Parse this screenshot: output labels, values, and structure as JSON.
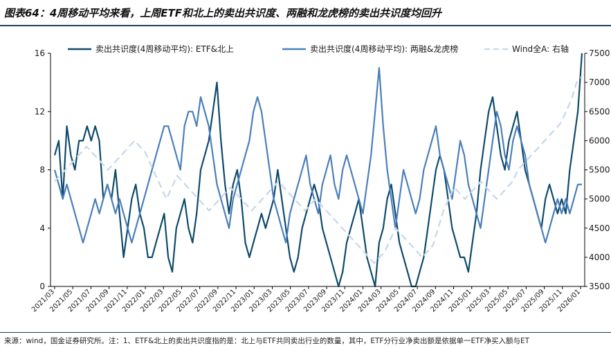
{
  "header": {
    "title": "图表64：4周移动平均来看，上周ETF和北上的卖出共识度、两融和龙虎榜的卖出共识度均回升"
  },
  "footer": {
    "note": "来源：wind，国金证券研究所。注：1、ETF&北上的卖出共识度指的是：北上与ETF共同卖出行业的数量，其中，ETF分行业净卖出额是依据单一ETF净买入额与ET"
  },
  "colors": {
    "series_etf": "#0d4a6b",
    "series_margin": "#4a7ebb",
    "series_wind": "#c9d9ea",
    "axis": "#000000"
  },
  "chart_data": {
    "type": "line",
    "title": "",
    "xlabel": "",
    "ylabel": "",
    "x_tick_labels": [
      "2021/03",
      "2021/05",
      "2021/07",
      "2021/09",
      "2021/11",
      "2022/01",
      "2022/03",
      "2022/05",
      "2022/07",
      "2022/09",
      "2022/11",
      "2023/01",
      "2023/03",
      "2023/05",
      "2023/07",
      "2023/09",
      "2023/11",
      "2024/01",
      "2024/03",
      "2024/05",
      "2024/07",
      "2024/09",
      "2024/11",
      "2025/01",
      "2025/03",
      "2025/05",
      "2025/07",
      "2025/09",
      "2025/11",
      "2026/01"
    ],
    "y_left_ticks": [
      "0",
      "4",
      "8",
      "12",
      "16"
    ],
    "y_right_ticks": [
      "3500",
      "4000",
      "4500",
      "5000",
      "5500",
      "6000",
      "6500",
      "7000",
      "7500"
    ],
    "ylim_left": [
      0,
      16
    ],
    "ylim_right": [
      3500,
      7500
    ],
    "legend_position": "top",
    "series": [
      {
        "name": "卖出共识度(4周移动平均): ETF&北上",
        "axis": "left",
        "values": [
          9,
          10,
          6,
          11,
          9,
          8,
          10,
          10,
          11,
          10,
          11,
          10,
          6,
          7,
          6,
          8,
          5,
          2,
          4,
          6,
          7,
          5,
          4,
          2,
          2,
          3,
          4,
          5,
          2,
          1,
          4,
          5,
          6,
          4,
          3,
          5,
          8,
          9,
          10,
          12,
          14,
          10,
          7,
          5,
          7,
          8,
          6,
          3,
          2,
          3,
          4,
          5,
          4,
          5,
          6,
          8,
          6,
          4,
          2,
          1,
          2,
          4,
          5,
          6,
          7,
          6,
          4,
          3,
          2,
          1,
          0,
          1,
          3,
          4,
          5,
          6,
          4,
          2,
          1,
          0,
          3,
          4,
          6,
          7,
          5,
          3,
          2,
          1,
          0,
          0,
          1,
          2,
          4,
          6,
          8,
          9,
          8,
          6,
          4,
          3,
          2,
          2,
          1,
          3,
          5,
          8,
          10,
          12,
          13,
          11,
          9,
          8,
          10,
          11,
          12,
          10,
          8,
          7,
          6,
          5,
          4,
          6,
          7,
          6,
          5,
          6,
          5,
          8,
          10,
          12,
          16
        ],
        "point_count": 131
      },
      {
        "name": "卖出共识度(4周移动平均): 两融&龙虎榜",
        "axis": "left",
        "values": [
          8,
          7,
          6,
          7,
          6,
          5,
          4,
          3,
          4,
          5,
          6,
          5,
          6,
          7,
          6,
          5,
          6,
          5,
          4,
          3,
          4,
          5,
          6,
          7,
          8,
          9,
          10,
          11,
          11,
          10,
          9,
          8,
          11,
          12,
          12,
          11,
          13,
          12,
          11,
          9,
          7,
          6,
          5,
          4,
          6,
          7,
          8,
          9,
          10,
          12,
          13,
          12,
          10,
          8,
          6,
          5,
          4,
          3,
          5,
          6,
          7,
          8,
          9,
          7,
          6,
          5,
          7,
          8,
          9,
          7,
          6,
          8,
          9,
          8,
          7,
          6,
          5,
          7,
          9,
          12,
          15,
          11,
          8,
          6,
          4,
          6,
          8,
          7,
          6,
          5,
          6,
          8,
          9,
          10,
          11,
          9,
          8,
          7,
          6,
          8,
          10,
          9,
          7,
          6,
          5,
          4,
          6,
          8,
          10,
          12,
          11,
          9,
          8,
          10,
          11,
          10,
          9,
          7,
          6,
          5,
          4,
          3,
          4,
          5,
          6,
          5,
          6,
          5,
          6,
          7,
          7
        ],
        "point_count": 131
      },
      {
        "name": "Wind全A: 右轴",
        "axis": "right",
        "values": [
          5300,
          5400,
          5500,
          5600,
          5700,
          5800,
          5900,
          5800,
          5700,
          5600,
          5500,
          5600,
          5700,
          5800,
          5900,
          6000,
          5900,
          5800,
          5600,
          5400,
          5200,
          5000,
          5200,
          5400,
          5300,
          5200,
          5100,
          5000,
          4900,
          4800,
          4900,
          5000,
          5100,
          5200,
          5100,
          5000,
          4900,
          4800,
          4900,
          5000,
          5100,
          5200,
          5300,
          5200,
          5100,
          5000,
          4900,
          4800,
          4900,
          5000,
          4900,
          4800,
          4700,
          4600,
          4500,
          4400,
          4300,
          4200,
          4100,
          4000,
          3900,
          4000,
          4100,
          4300,
          4500,
          4400,
          4300,
          4200,
          4100,
          4000,
          4100,
          4200,
          4500,
          4800,
          5000,
          5200,
          5100,
          5000,
          5100,
          5200,
          5300,
          5200,
          5100,
          5000,
          5100,
          5200,
          5300,
          5500,
          5600,
          5700,
          5800,
          5900,
          6000,
          6100,
          6200,
          6300,
          6500,
          6700,
          7000,
          7100
        ],
        "point_count": 100
      }
    ]
  }
}
